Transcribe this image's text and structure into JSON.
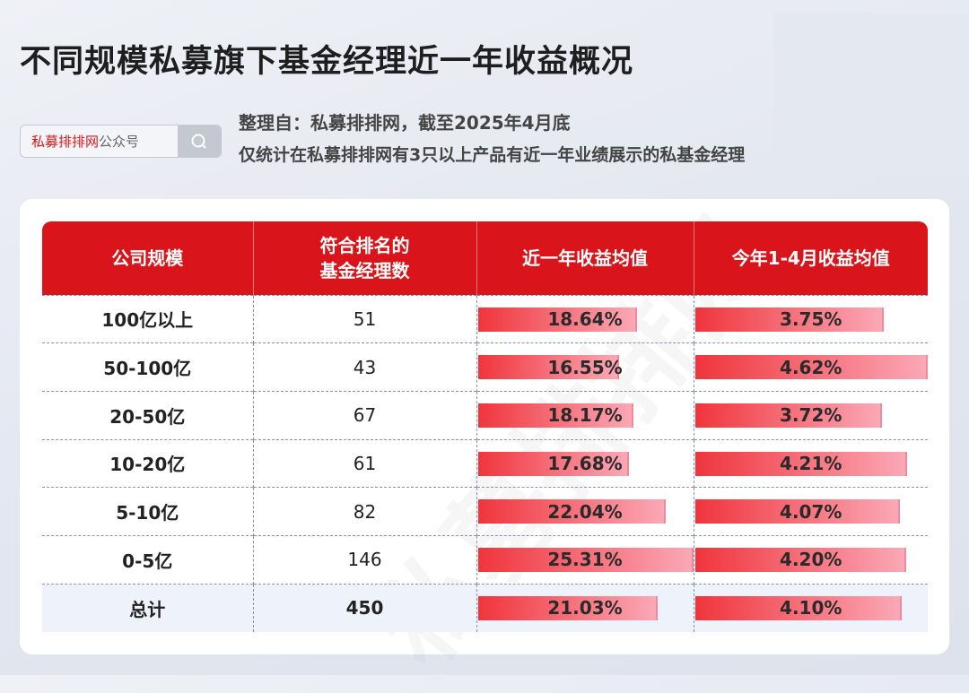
{
  "title": "不同规模私募旗下基金经理近一年收益概况",
  "search": {
    "brand": "私募排排网",
    "suffix": "公众号",
    "icon": "search-icon"
  },
  "source": "整理自：私募排排网，截至2025年4月底",
  "note": "仅统计在私募排排网有3只以上产品有近一年业绩展示的私基金经理",
  "colors": {
    "header": "#d9151b",
    "bar_start": "#f0353c",
    "bar_end": "#fba8b6"
  },
  "chart_data": {
    "type": "table",
    "columns": [
      "公司规模",
      "符合排名的\n基金经理数",
      "近一年收益均值",
      "今年1-4月收益均值"
    ],
    "rows": [
      {
        "scale": "100亿以上",
        "count": "51",
        "y1": 18.64,
        "ytd": 3.75
      },
      {
        "scale": "50-100亿",
        "count": "43",
        "y1": 16.55,
        "ytd": 4.62
      },
      {
        "scale": "20-50亿",
        "count": "67",
        "y1": 18.17,
        "ytd": 3.72
      },
      {
        "scale": "10-20亿",
        "count": "61",
        "y1": 17.68,
        "ytd": 4.21
      },
      {
        "scale": "5-10亿",
        "count": "82",
        "y1": 22.04,
        "ytd": 4.07
      },
      {
        "scale": "0-5亿",
        "count": "146",
        "y1": 25.31,
        "ytd": 4.2
      },
      {
        "scale": "总计",
        "count": "450",
        "y1": 21.03,
        "ytd": 4.1
      }
    ],
    "unit": "%"
  }
}
